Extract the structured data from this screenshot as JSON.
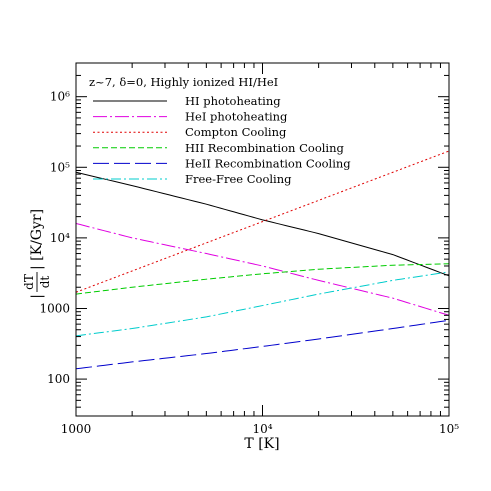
{
  "chart_data": {
    "type": "line",
    "annotation": "z~7, δ=0, Highly ionized HI/HeI",
    "xlabel": "T [K]",
    "ylabel": "|dT/dt| [K/Gyr]",
    "ylabel_prefix": "|",
    "ylabel_numerator": "dT",
    "ylabel_denominator": "dt",
    "ylabel_suffix": "| [K/Gyr]",
    "xscale": "log",
    "yscale": "log",
    "xlim": [
      1000,
      100000
    ],
    "ylim": [
      30,
      3000000
    ],
    "legend_position": "top-left",
    "x_ticks": [
      {
        "value": 1000,
        "label": "1000"
      },
      {
        "value": 10000,
        "label": "10⁴"
      },
      {
        "value": 100000,
        "label": "10⁵"
      }
    ],
    "y_ticks": [
      {
        "value": 100,
        "label": "100"
      },
      {
        "value": 1000,
        "label": "1000"
      },
      {
        "value": 10000,
        "label": "10⁴"
      },
      {
        "value": 100000,
        "label": "10⁵"
      },
      {
        "value": 1000000,
        "label": "10⁶"
      }
    ],
    "series": [
      {
        "name": "HI photoheating",
        "color": "#000000",
        "dash": "",
        "x": [
          1000,
          2000,
          5000,
          10000,
          20000,
          50000,
          100000
        ],
        "y": [
          85000,
          55000,
          30000,
          18000,
          11500,
          5800,
          2900
        ]
      },
      {
        "name": "HeI photoheating",
        "color": "#e000e0",
        "dash": "14 3 2 3",
        "x": [
          1000,
          2000,
          5000,
          10000,
          20000,
          50000,
          100000
        ],
        "y": [
          16000,
          10000,
          6000,
          4000,
          2500,
          1400,
          800
        ]
      },
      {
        "name": "Compton Cooling",
        "color": "#e00000",
        "dash": "2 2.5",
        "x": [
          1000,
          10000,
          100000
        ],
        "y": [
          1700,
          17000,
          170000
        ]
      },
      {
        "name": "HII Recombination Cooling",
        "color": "#00cc00",
        "dash": "6 3",
        "x": [
          1000,
          2000,
          5000,
          10000,
          20000,
          50000,
          100000
        ],
        "y": [
          1600,
          2000,
          2600,
          3100,
          3600,
          4100,
          4300
        ]
      },
      {
        "name": "HeII Recombination Cooling",
        "color": "#0000cc",
        "dash": "16 5",
        "x": [
          1000,
          2000,
          5000,
          10000,
          20000,
          50000,
          100000
        ],
        "y": [
          140,
          175,
          230,
          290,
          370,
          520,
          680
        ]
      },
      {
        "name": "Free-Free Cooling",
        "color": "#00cccc",
        "dash": "10 3 2 3",
        "x": [
          1000,
          2000,
          5000,
          10000,
          20000,
          50000,
          100000
        ],
        "y": [
          410,
          520,
          760,
          1100,
          1600,
          2500,
          3300
        ]
      }
    ]
  }
}
